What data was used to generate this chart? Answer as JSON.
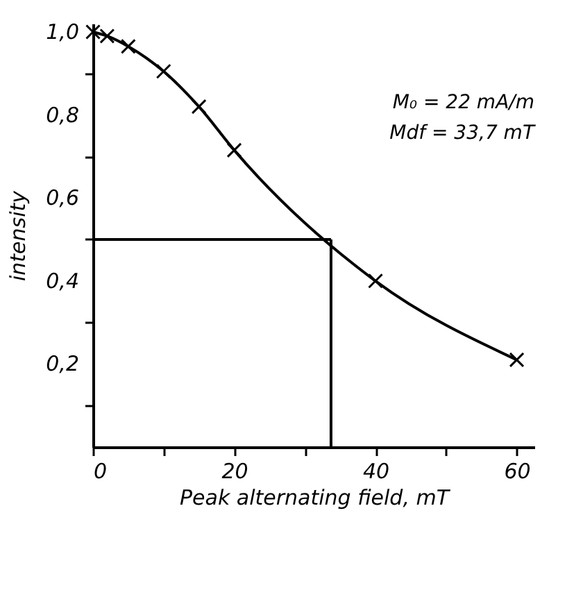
{
  "chart_data": {
    "type": "line",
    "xlabel": "Peak alternating field, mT",
    "ylabel": "intensity",
    "x": [
      0,
      2,
      5,
      10,
      15,
      20,
      40,
      60
    ],
    "series": [
      {
        "color": "#000000",
        "values": [
          1.0,
          0.99,
          0.965,
          0.905,
          0.82,
          0.715,
          0.4,
          0.21
        ]
      }
    ],
    "xlim": [
      0,
      62.5
    ],
    "ylim": [
      0,
      1.02
    ],
    "xticks": [
      0,
      {
        "value": 10,
        "label": null
      },
      20,
      {
        "value": 30,
        "label": null
      },
      40,
      {
        "value": 50,
        "label": null
      },
      60
    ],
    "yticks": [
      {
        "value": 0.1,
        "label": null
      },
      {
        "value": 0.2,
        "label": "0,2"
      },
      {
        "value": 0.3,
        "label": null
      },
      {
        "value": 0.4,
        "label": "0,4"
      },
      {
        "value": 0.5,
        "label": null
      },
      {
        "value": 0.6,
        "label": "0,6"
      },
      {
        "value": 0.7,
        "label": null
      },
      {
        "value": 0.8,
        "label": "0,8"
      },
      {
        "value": 0.9,
        "label": null
      },
      {
        "value": 1.0,
        "label": "1,0"
      }
    ],
    "ref_lines": [
      {
        "axis": "y",
        "value": 0.5
      },
      {
        "axis": "x",
        "value": 33.7
      }
    ],
    "annotations": [
      "M₀ = 22 mA/m",
      "Mdf = 33,7 mT"
    ],
    "marker": "cross",
    "line_style": "solid",
    "grid": false
  }
}
